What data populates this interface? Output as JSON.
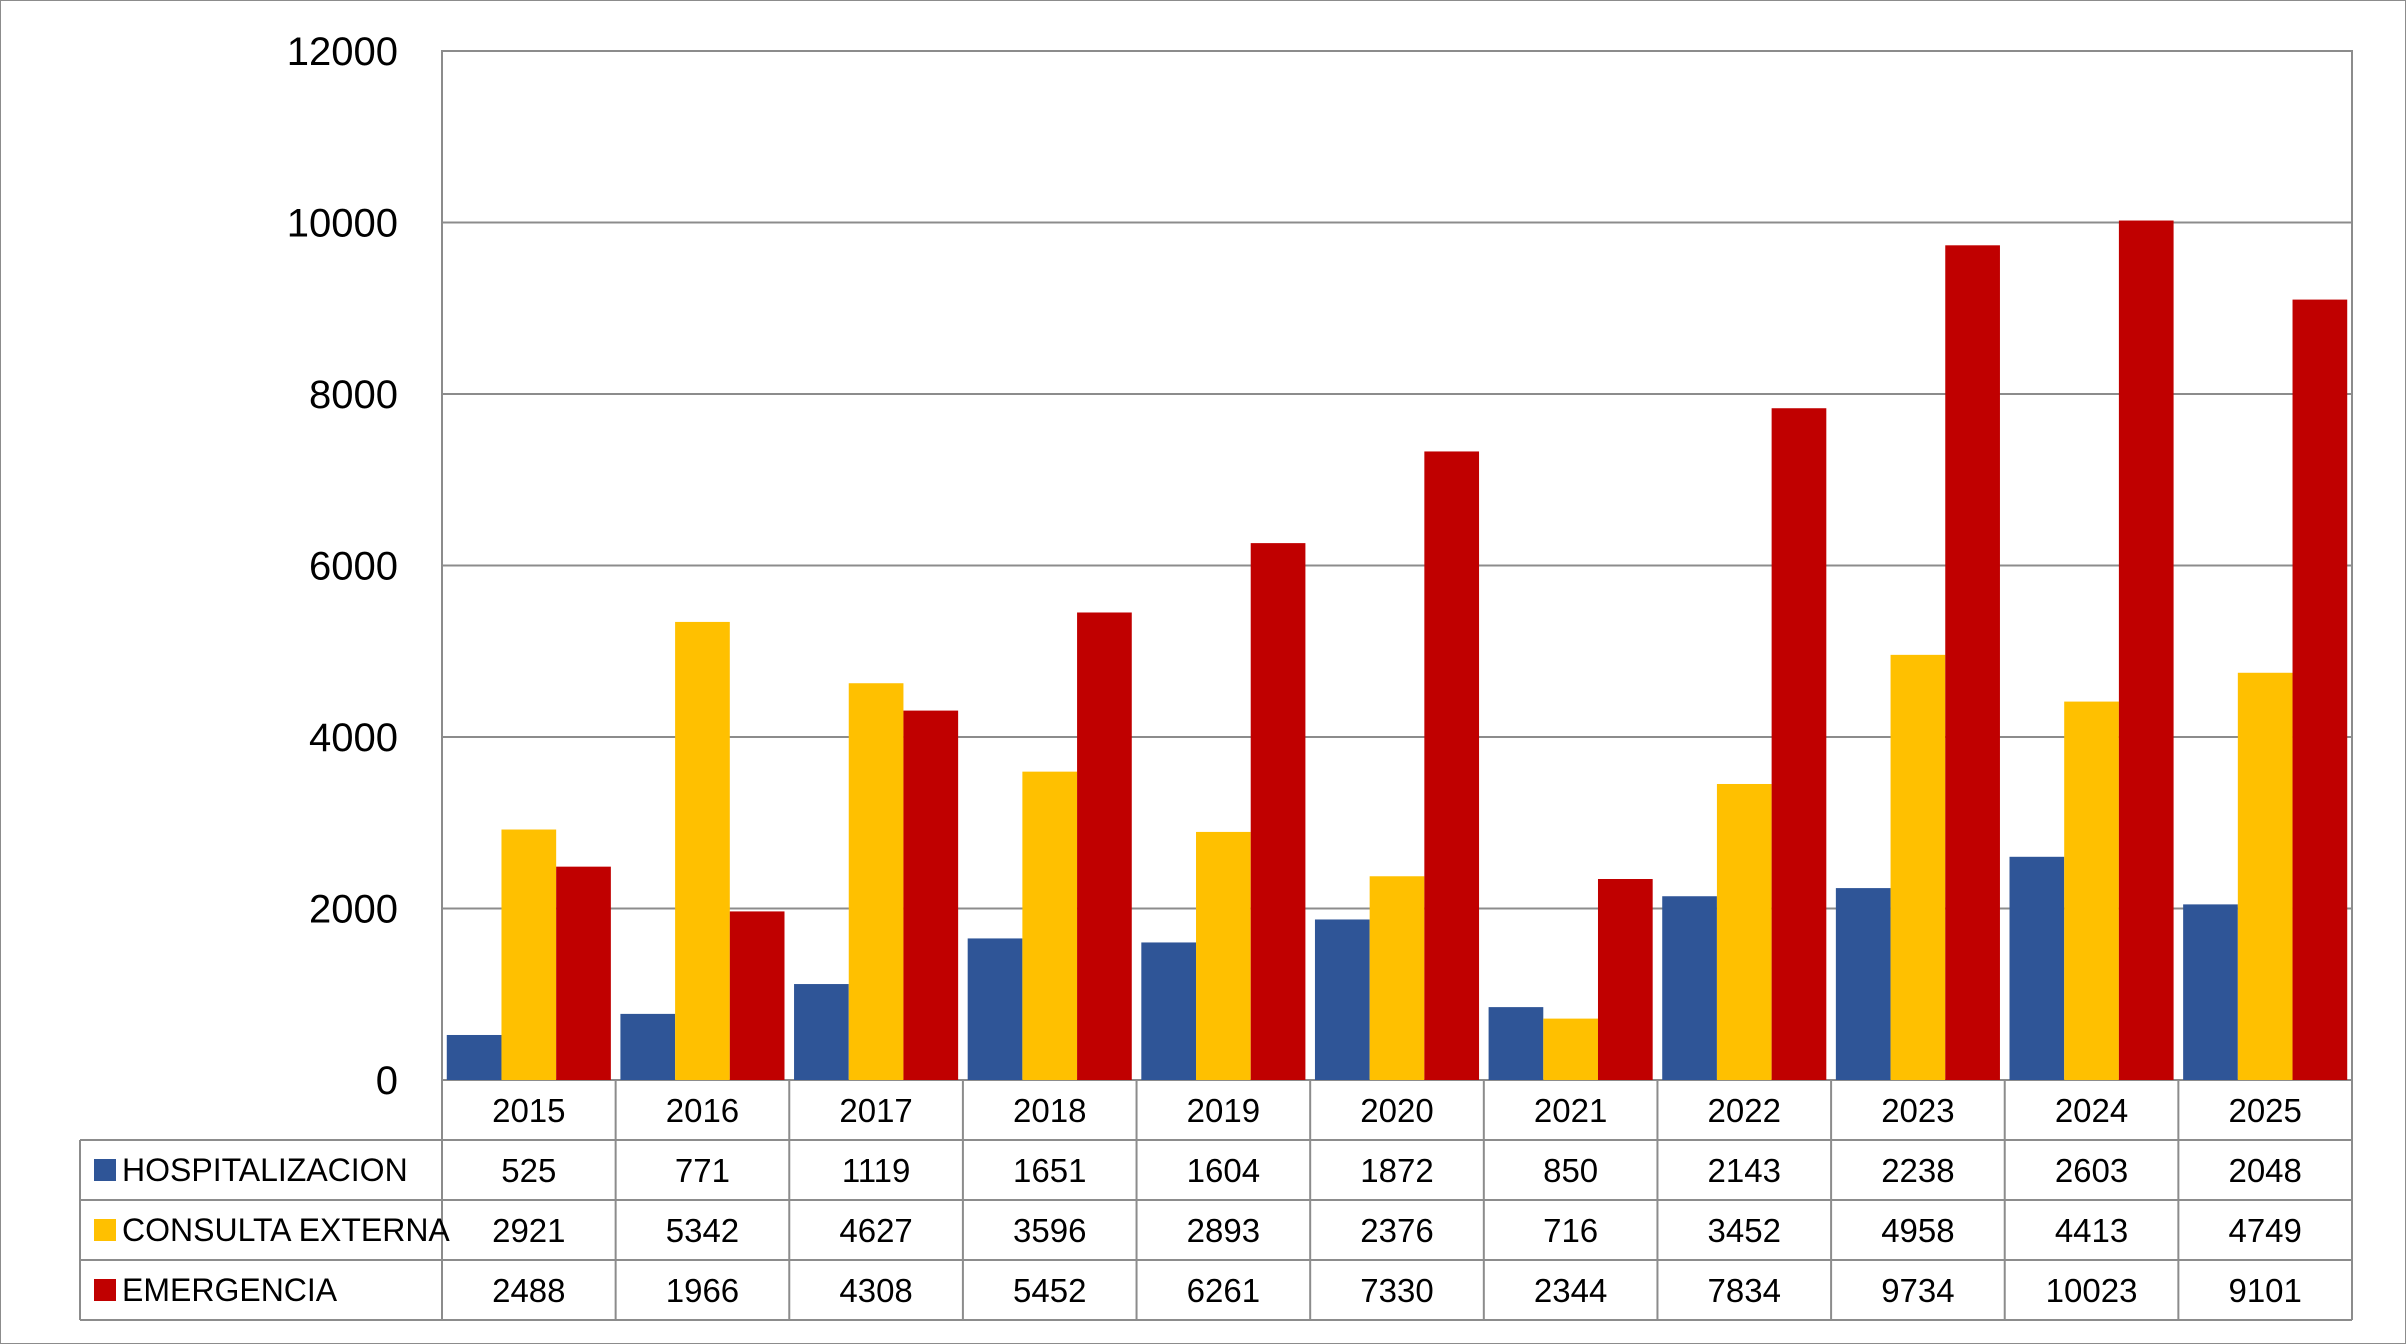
{
  "chart_data": {
    "type": "bar",
    "title": "",
    "xlabel": "",
    "ylabel": "",
    "ylim": [
      0,
      12000
    ],
    "yticks": [
      0,
      2000,
      4000,
      6000,
      8000,
      10000,
      12000
    ],
    "grid": true,
    "legend": "data-table-left",
    "categories": [
      "2015",
      "2016",
      "2017",
      "2018",
      "2019",
      "2020",
      "2021",
      "2022",
      "2023",
      "2024",
      "2025"
    ],
    "series": [
      {
        "name": "HOSPITALIZACION",
        "color": "#2f5597",
        "values": [
          525,
          771,
          1119,
          1651,
          1604,
          1872,
          850,
          2143,
          2238,
          2603,
          2048
        ]
      },
      {
        "name": "CONSULTA EXTERNA",
        "color": "#ffc000",
        "values": [
          2921,
          5342,
          4627,
          3596,
          2893,
          2376,
          716,
          3452,
          4958,
          4413,
          4749
        ]
      },
      {
        "name": "EMERGENCIA",
        "color": "#c00000",
        "values": [
          2488,
          1966,
          4308,
          5452,
          6261,
          7330,
          2344,
          7834,
          9734,
          10023,
          9101
        ]
      }
    ]
  }
}
